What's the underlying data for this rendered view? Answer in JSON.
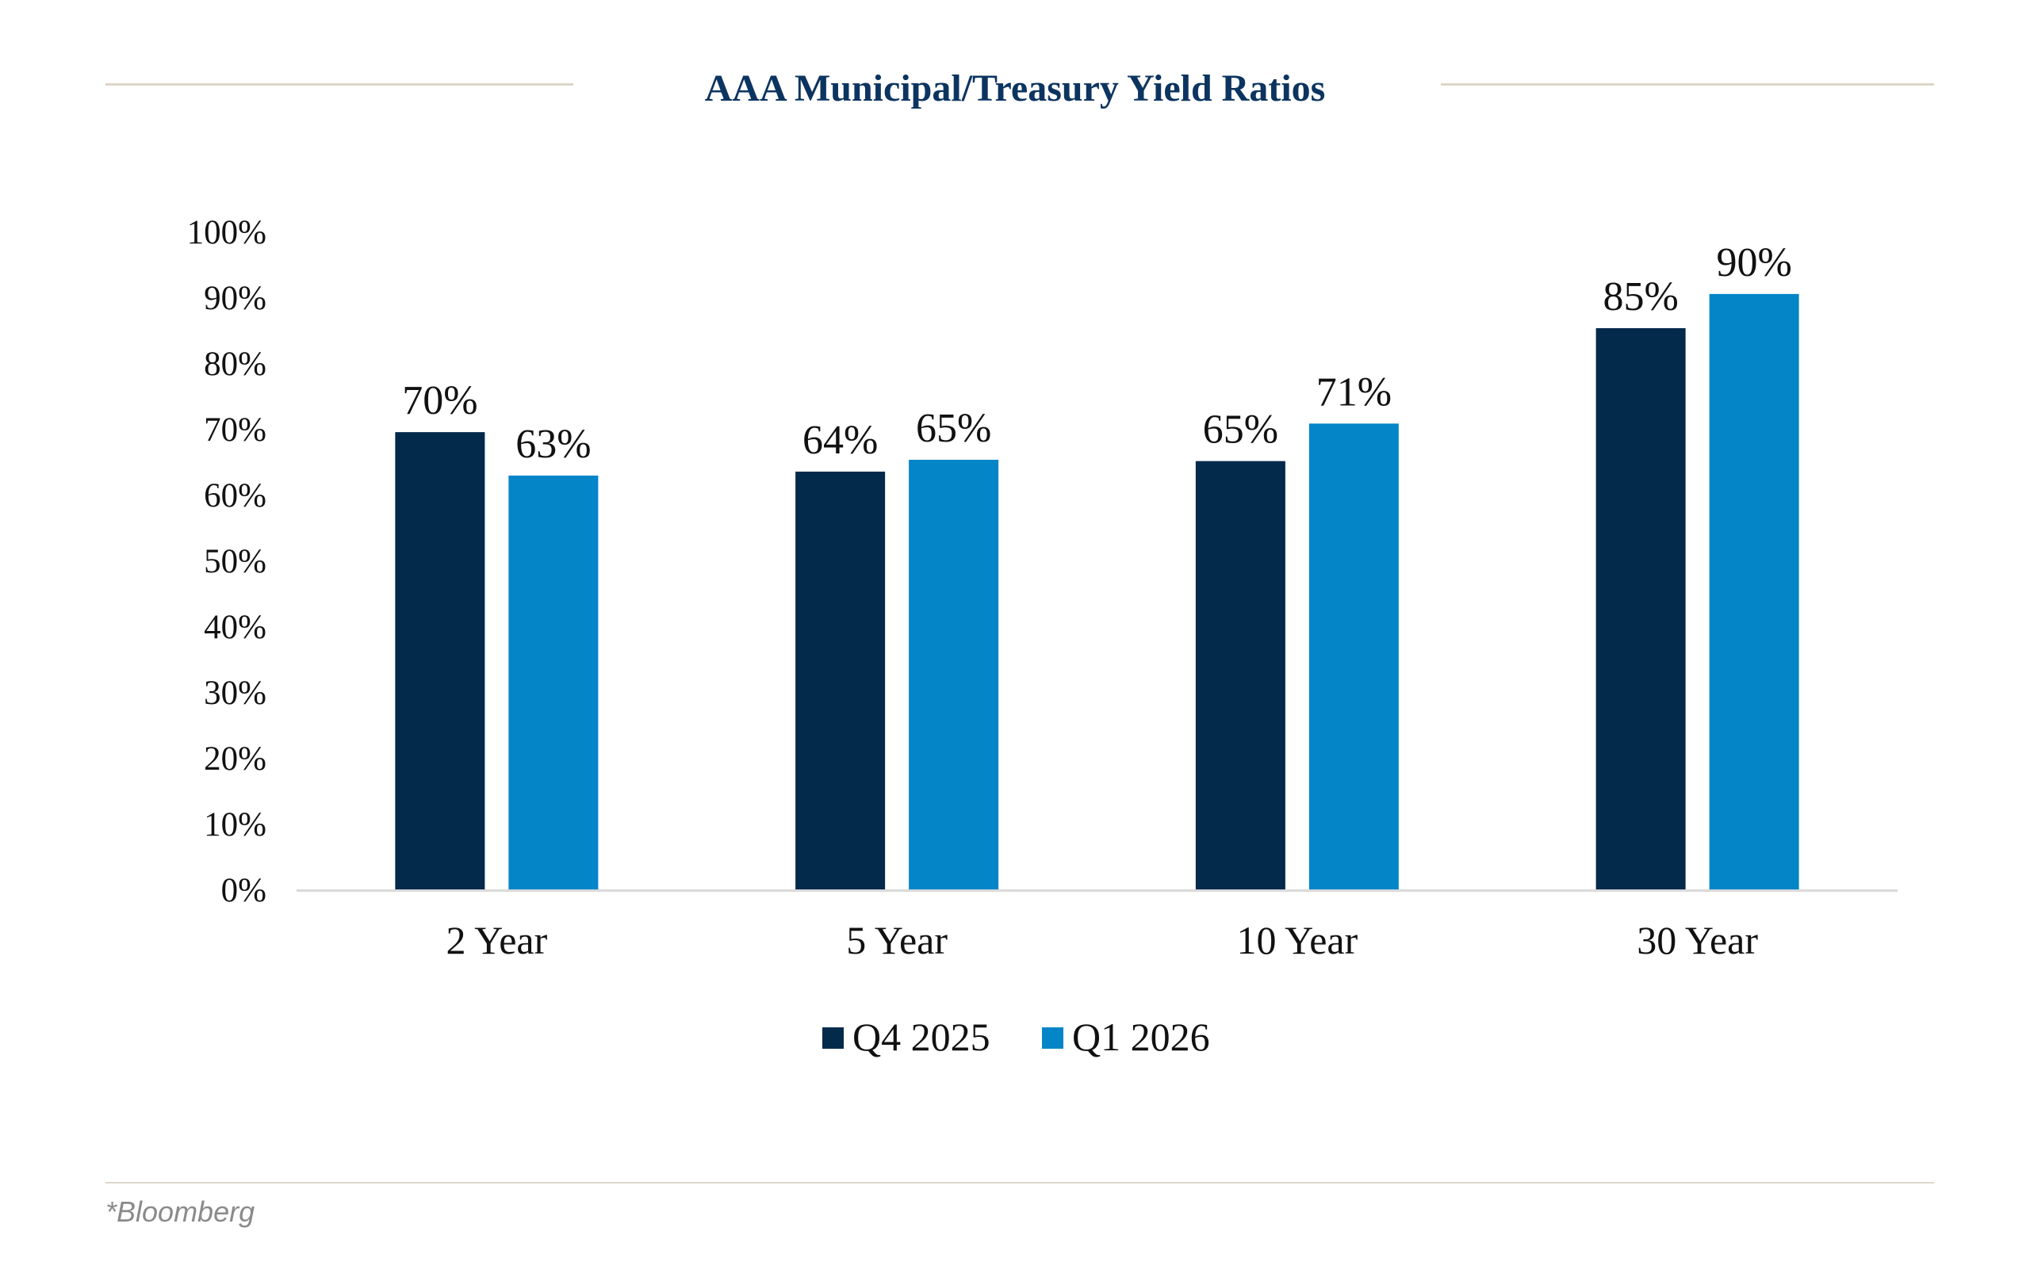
{
  "chart_data": {
    "type": "bar",
    "title": "AAA Municipal/Treasury Yield Ratios",
    "xlabel": "",
    "ylabel": "",
    "ylim": [
      0,
      100
    ],
    "yticks": [
      0,
      10,
      20,
      30,
      40,
      50,
      60,
      70,
      80,
      90,
      100
    ],
    "ytick_labels": [
      "0%",
      "10%",
      "20%",
      "30%",
      "40%",
      "50%",
      "60%",
      "70%",
      "80%",
      "90%",
      "100%"
    ],
    "grid": false,
    "categories": [
      "2 Year",
      "5 Year",
      "10 Year",
      "30 Year"
    ],
    "series": [
      {
        "name": "Q4 2025",
        "color": "#03294B",
        "values": [
          69.5,
          63.5,
          65.1,
          85.3
        ],
        "data_labels": [
          "70%",
          "64%",
          "65%",
          "85%"
        ]
      },
      {
        "name": "Q1 2026",
        "color": "#0485C8",
        "values": [
          62.9,
          65.3,
          70.8,
          90.5
        ],
        "data_labels": [
          "63%",
          "65%",
          "71%",
          "90%"
        ]
      }
    ],
    "legend": {
      "position": "bottom-center",
      "entries": [
        "Q4 2025",
        "Q1 2026"
      ]
    },
    "source_note": "*Bloomberg"
  },
  "colors": {
    "title": "#0C3460",
    "rule": "#DDD6C8",
    "axis": "#D9D9D9",
    "source_text": "#8A8A8A"
  }
}
